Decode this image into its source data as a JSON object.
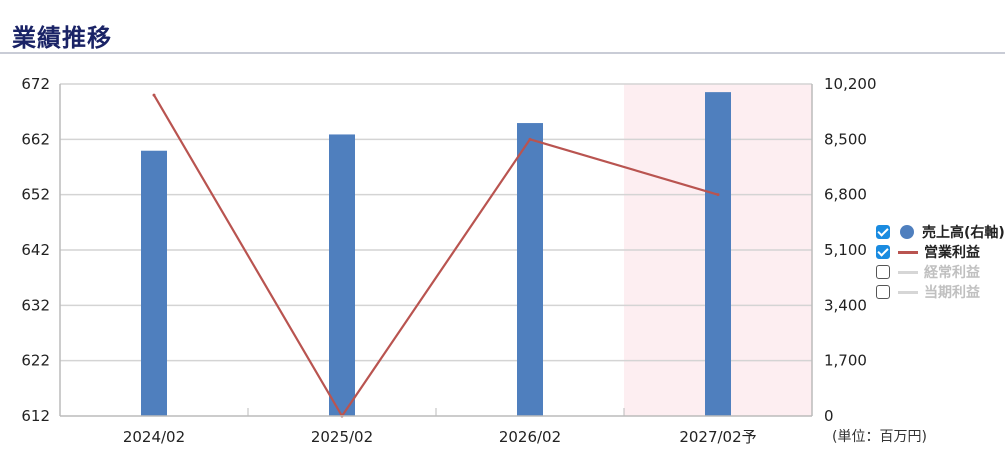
{
  "page": {
    "title": "業績推移",
    "unit_note": "(単位：百万円)"
  },
  "legend": [
    {
      "label": "売上高(右軸)",
      "checked": true,
      "symbol": "dot",
      "color": "#4f7fbe"
    },
    {
      "label": "営業利益",
      "checked": true,
      "symbol": "line",
      "color": "#b95450"
    },
    {
      "label": "経常利益",
      "checked": false,
      "symbol": "line",
      "color": "#d6d6d6"
    },
    {
      "label": "当期利益",
      "checked": false,
      "symbol": "line",
      "color": "#d6d6d6"
    }
  ],
  "chart_data": {
    "type": "bar",
    "categories": [
      "2024/02",
      "2025/02",
      "2026/02",
      "2027/02予"
    ],
    "forecast_index": 3,
    "forecast_color": "#fdeef1",
    "series": [
      {
        "name": "売上高(右軸)",
        "type": "bar",
        "axis": "right",
        "color": "#4f7fbe",
        "values": [
          8150,
          8650,
          9000,
          9950
        ]
      },
      {
        "name": "営業利益",
        "type": "line",
        "axis": "left",
        "color": "#b95450",
        "values": [
          670,
          612,
          662,
          652
        ]
      }
    ],
    "y_left": {
      "ylim": [
        612,
        672
      ],
      "ticks": [
        "612",
        "622",
        "632",
        "642",
        "652",
        "662",
        "672"
      ]
    },
    "y_right": {
      "ylim": [
        0,
        10200
      ],
      "ticks": [
        "0",
        "1,700",
        "3,400",
        "5,100",
        "6,800",
        "8,500",
        "10,200"
      ]
    },
    "grid": true
  }
}
